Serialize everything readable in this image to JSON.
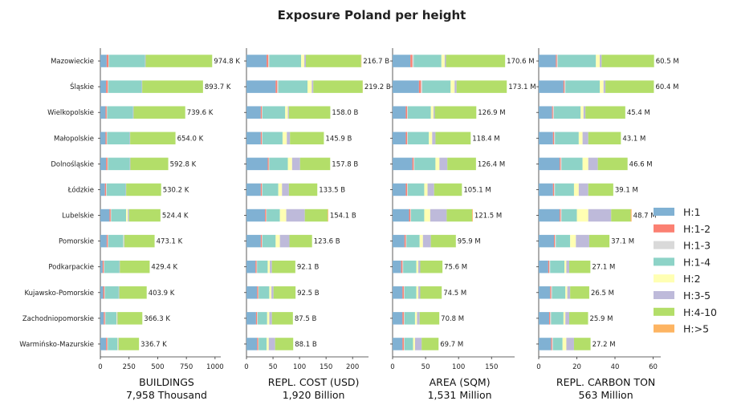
{
  "chart_data": {
    "type": "bar",
    "orientation": "horizontal",
    "stacked": true,
    "title": "Exposure Poland per height",
    "categories": [
      "Mazowieckie",
      "Śląskie",
      "Wielkopolskie",
      "Małopolskie",
      "Dolnośląskie",
      "Łódzkie",
      "Lubelskie",
      "Pomorskie",
      "Podkarpackie",
      "Kujawsko-Pomorskie",
      "Zachodniopomorskie",
      "Warmińsko-Mazurskie"
    ],
    "legend": {
      "position": "right",
      "entries": [
        {
          "name": "H:1",
          "color": "#80b1d3"
        },
        {
          "name": "H:1-2",
          "color": "#fb8072"
        },
        {
          "name": "H:1-3",
          "color": "#d9d9d9"
        },
        {
          "name": "H:1-4",
          "color": "#8dd3c7"
        },
        {
          "name": "H:2",
          "color": "#ffffb3"
        },
        {
          "name": "H:3-5",
          "color": "#bebada"
        },
        {
          "name": "H:4-10",
          "color": "#b3de69"
        },
        {
          "name": "H:>5",
          "color": "#fdb462"
        }
      ]
    },
    "panels": [
      {
        "xlabel": "BUILDINGS",
        "total": "7,958 Thousand",
        "xlim": [
          0,
          1050
        ],
        "ticks": [
          0,
          250,
          500,
          750,
          1000
        ],
        "labels": [
          "974.8 K",
          "893.7 K",
          "739.6 K",
          "654.0 K",
          "592.8 K",
          "530.2 K",
          "524.4 K",
          "473.1 K",
          "429.4 K",
          "403.9 K",
          "366.3 K",
          "336.7 K"
        ],
        "segments": [
          [
            55,
            15,
            5,
            315,
            0,
            5,
            580,
            0
          ],
          [
            50,
            15,
            5,
            290,
            0,
            5,
            530,
            0
          ],
          [
            45,
            10,
            5,
            225,
            0,
            5,
            450,
            0
          ],
          [
            45,
            10,
            5,
            195,
            0,
            5,
            395,
            0
          ],
          [
            50,
            12,
            5,
            190,
            0,
            5,
            330,
            0
          ],
          [
            40,
            10,
            5,
            165,
            0,
            5,
            305,
            0
          ],
          [
            80,
            10,
            5,
            130,
            15,
            10,
            274,
            0
          ],
          [
            55,
            10,
            5,
            130,
            5,
            5,
            263,
            0
          ],
          [
            20,
            10,
            5,
            130,
            0,
            5,
            260,
            0
          ],
          [
            25,
            10,
            5,
            120,
            0,
            5,
            239,
            0
          ],
          [
            30,
            10,
            5,
            95,
            5,
            5,
            216,
            0
          ],
          [
            50,
            10,
            5,
            85,
            5,
            5,
            177,
            0
          ]
        ]
      },
      {
        "xlabel": "REPL. COST (USD)",
        "total": "1,920 Billion",
        "xlim": [
          0,
          230
        ],
        "ticks": [
          0,
          50,
          100,
          150,
          200
        ],
        "labels": [
          "216.7 B",
          "219.2 B",
          "158.0 B",
          "145.9 B",
          "157.8 B",
          "133.5 B",
          "154.1 B",
          "123.6 B",
          "92.1 B",
          "92.5 B",
          "87.5 B",
          "88.1 B"
        ],
        "segments": [
          [
            38,
            3,
            2,
            60,
            6,
            3,
            104,
            0.7
          ],
          [
            55,
            3,
            2,
            55,
            8,
            3,
            93,
            0.2
          ],
          [
            27,
            2,
            1,
            43,
            5,
            2,
            78,
            0
          ],
          [
            27,
            2,
            1,
            38,
            8,
            6,
            63.9,
            0
          ],
          [
            40,
            2,
            1,
            35,
            8,
            15,
            56.8,
            0
          ],
          [
            27,
            2,
            1,
            30,
            7,
            13,
            53.5,
            0
          ],
          [
            35,
            2,
            1,
            25,
            12,
            35,
            43,
            1.1
          ],
          [
            27,
            2,
            1,
            25,
            8,
            18,
            42.6,
            0
          ],
          [
            17,
            2,
            1,
            20,
            4,
            4,
            44.1,
            0
          ],
          [
            20,
            2,
            1,
            20,
            4,
            4,
            41.5,
            0
          ],
          [
            18,
            2,
            1,
            18,
            4,
            5,
            39.5,
            0
          ],
          [
            20,
            2,
            1,
            15,
            4,
            12,
            34.1,
            0
          ]
        ]
      },
      {
        "xlabel": "AREA (SQM)",
        "total": "1,531 Million",
        "xlim": [
          0,
          185
        ],
        "ticks": [
          0,
          50,
          100,
          150
        ],
        "labels": [
          "170.6 M",
          "173.1 M",
          "126.9 M",
          "118.4 M",
          "126.4 M",
          "105.1 M",
          "121.5 M",
          "95.9 M",
          "75.6 M",
          "74.5 M",
          "70.8 M",
          "69.7 M"
        ],
        "segments": [
          [
            27,
            3,
            2,
            42,
            5,
            2,
            89.6,
            0
          ],
          [
            40,
            3,
            2,
            43,
            6,
            3,
            76.1,
            0
          ],
          [
            20,
            2,
            1,
            35,
            4,
            2,
            62.9,
            0
          ],
          [
            20,
            2,
            1,
            32,
            5,
            5,
            53.4,
            0
          ],
          [
            30,
            2,
            1,
            32,
            6,
            12,
            43.4,
            0
          ],
          [
            20,
            2,
            1,
            25,
            5,
            10,
            42.1,
            0
          ],
          [
            25,
            2,
            1,
            20,
            9,
            25,
            38.5,
            1
          ],
          [
            18,
            2,
            1,
            20,
            5,
            12,
            37.9,
            0
          ],
          [
            13,
            2,
            1,
            20,
            3,
            3,
            33.6,
            0
          ],
          [
            15,
            2,
            1,
            18,
            3,
            3,
            32.5,
            0
          ],
          [
            15,
            2,
            1,
            16,
            3,
            4,
            29.8,
            0
          ],
          [
            15,
            2,
            1,
            13,
            3,
            10,
            25.7,
            0
          ]
        ]
      },
      {
        "xlabel": "REPL. CARBON TON",
        "total": "563 Million",
        "xlim": [
          0,
          64
        ],
        "ticks": [
          0,
          20,
          40,
          60
        ],
        "labels": [
          "60.5 M",
          "60.4 M",
          "45.4 M",
          "43.1 M",
          "46.6 M",
          "39.1 M",
          "48.7 M",
          "37.1 M",
          "27.1 M",
          "26.5 M",
          "25.9 M",
          "27.2 M"
        ],
        "segments": [
          [
            9,
            0.5,
            0.5,
            20,
            2,
            1,
            27.5,
            0
          ],
          [
            13,
            0.5,
            0.5,
            18,
            2,
            1,
            25.4,
            0
          ],
          [
            7,
            0.5,
            0.5,
            14,
            1.5,
            1,
            20.9,
            0
          ],
          [
            7.5,
            0.5,
            0.5,
            12.5,
            2,
            3,
            17.1,
            0
          ],
          [
            11,
            0.5,
            0.5,
            11,
            3,
            5,
            15.6,
            0
          ],
          [
            7.5,
            0.5,
            0.5,
            10,
            2.5,
            5,
            13.1,
            0
          ],
          [
            11,
            0.5,
            0.5,
            8,
            6,
            12,
            10.2,
            0.5
          ],
          [
            8,
            0.5,
            0.5,
            7.5,
            3,
            7,
            10.6,
            0
          ],
          [
            5,
            0.5,
            0.5,
            7.5,
            1,
            1.5,
            11.1,
            0
          ],
          [
            6,
            0.5,
            0.5,
            7,
            1,
            1.5,
            10,
            0
          ],
          [
            5.5,
            0.5,
            0.5,
            6.5,
            1,
            2,
            9.9,
            0
          ],
          [
            6.5,
            0.5,
            0.5,
            5,
            2,
            4,
            8.7,
            0
          ]
        ]
      }
    ]
  }
}
